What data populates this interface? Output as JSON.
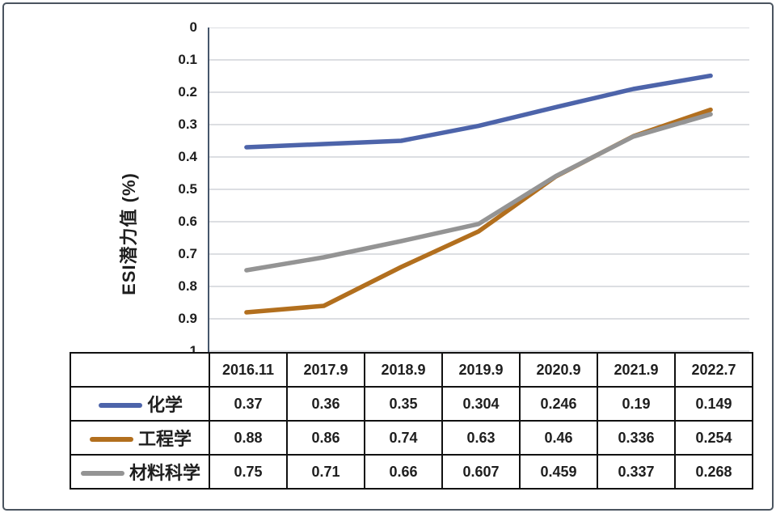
{
  "chart_data": {
    "type": "line",
    "categories": [
      "2016.11",
      "2017.9",
      "2018.9",
      "2019.9",
      "2020.9",
      "2021.9",
      "2022.7"
    ],
    "series": [
      {
        "name": "化学",
        "color": "#4d64aa",
        "values": [
          0.37,
          0.36,
          0.35,
          0.304,
          0.246,
          0.19,
          0.149
        ]
      },
      {
        "name": "工程学",
        "color": "#b26f1e",
        "values": [
          0.88,
          0.86,
          0.74,
          0.63,
          0.46,
          0.336,
          0.254
        ]
      },
      {
        "name": "材料科学",
        "color": "#949494",
        "values": [
          0.75,
          0.71,
          0.66,
          0.607,
          0.459,
          0.337,
          0.268
        ]
      }
    ],
    "title": "",
    "xlabel": "",
    "ylabel": "ESI潜力值 (%)",
    "yticks": [
      0,
      0.1,
      0.2,
      0.3,
      0.4,
      0.5,
      0.6,
      0.7,
      0.8,
      0.9,
      1
    ],
    "ylim": [
      0,
      1
    ],
    "y_axis_inverted": true,
    "grid": true,
    "legend_position": "table-left",
    "colors": {
      "gridline": "#d0d4d9",
      "axis_line": "#46566b",
      "table_border": "#111111",
      "text": "#1e1e1e"
    }
  }
}
